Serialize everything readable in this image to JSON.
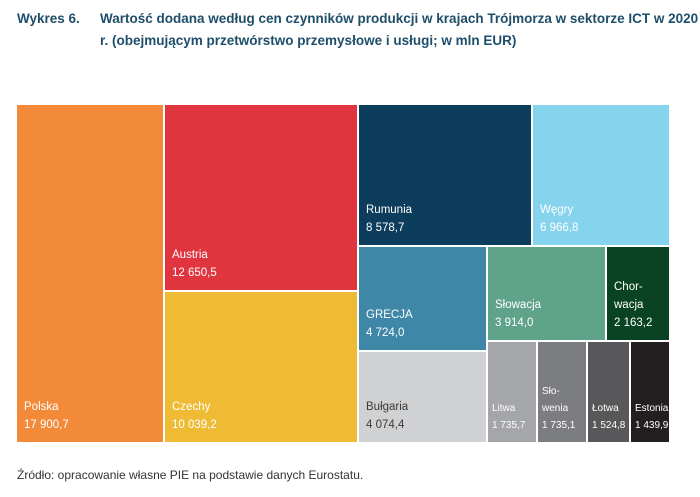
{
  "title": {
    "label": "Wykres 6.",
    "text": "Wartość dodana według cen czynników produkcji w krajach Trójmorza w sektorze ICT w 2020 r. (obejmującym przetwórstwo przemysłowe i usługi; w mln EUR)"
  },
  "chart_data": {
    "type": "treemap",
    "title": "Wartość dodana według cen czynników produkcji w krajach Trójmorza w sektorze ICT w 2020 r. (obejmującym przetwórstwo przemysłowe i usługi; w mln EUR)",
    "unit": "mln EUR",
    "items": [
      {
        "name": "Polska",
        "label": "Polska",
        "value": 17900.7,
        "value_label": "17 900,7",
        "color": "#F28A3A",
        "text_color": "#FFFFFF"
      },
      {
        "name": "Austria",
        "label": "Austria",
        "value": 12650.5,
        "value_label": "12 650,5",
        "color": "#E0353F",
        "text_color": "#FFFFFF"
      },
      {
        "name": "Czechy",
        "label": "Czechy",
        "value": 10039.2,
        "value_label": "10 039,2",
        "color": "#EFBB35",
        "text_color": "#FFFFFF"
      },
      {
        "name": "Rumunia",
        "label": "Rumunia",
        "value": 8578.7,
        "value_label": "8 578,7",
        "color": "#0D3D5C",
        "text_color": "#FFFFFF"
      },
      {
        "name": "Węgry",
        "label": "Węgry",
        "value": 6966.8,
        "value_label": "6 966,8",
        "color": "#86D3EE",
        "text_color": "#FFFFFF"
      },
      {
        "name": "GRECJA",
        "label": "GRECJA",
        "value": 4724.0,
        "value_label": "4 724,0",
        "color": "#3E87A6",
        "text_color": "#FFFFFF"
      },
      {
        "name": "Bułgaria",
        "label": "Bułgaria",
        "value": 4074.4,
        "value_label": "4 074,4",
        "color": "#D0D1D3",
        "text_color": "#3A3A3A"
      },
      {
        "name": "Słowacja",
        "label": "Słowacja",
        "value": 3914.0,
        "value_label": "3 914,0",
        "color": "#5FA38A",
        "text_color": "#FFFFFF"
      },
      {
        "name": "Chorwacja",
        "label": "Chor-\nwacja",
        "value": 2163.2,
        "value_label": "2 163,2",
        "color": "#0A4323",
        "text_color": "#FFFFFF"
      },
      {
        "name": "Litwa",
        "label": "Litwa",
        "value": 1735.7,
        "value_label": "1 735,7",
        "color": "#A5A6A9",
        "text_color": "#FFFFFF"
      },
      {
        "name": "Słowenia",
        "label": "Sło-\nwenia",
        "value": 1735.1,
        "value_label": "1 735,1",
        "color": "#7C7D80",
        "text_color": "#FFFFFF"
      },
      {
        "name": "Łotwa",
        "label": "Łotwa",
        "value": 1524.8,
        "value_label": "1 524,8",
        "color": "#58585B",
        "text_color": "#FFFFFF"
      },
      {
        "name": "Estonia",
        "label": "Estonia",
        "value": 1439.9,
        "value_label": "1 439,9",
        "color": "#231F20",
        "text_color": "#FFFFFF"
      }
    ]
  },
  "source": "Źródło: opracowanie własne PIE na podstawie danych Eurostatu."
}
